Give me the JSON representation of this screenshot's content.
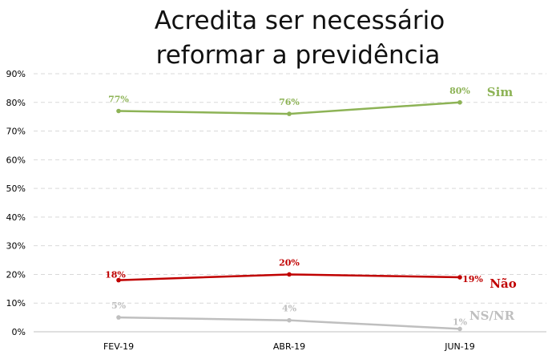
{
  "title_line1": "Acredita ser necessário",
  "title_line2": "reformar a previdência",
  "chart_data": {
    "type": "line",
    "title": "Acredita ser necessário reformar a previdência",
    "categories": [
      "FEV-19",
      "ABR-19",
      "JUN-19"
    ],
    "ylim": [
      0,
      90
    ],
    "y_ticks": [
      "0%",
      "10%",
      "20%",
      "30%",
      "40%",
      "50%",
      "60%",
      "70%",
      "80%",
      "90%"
    ],
    "grid": "horizontal dashed",
    "series": [
      {
        "name": "Sim",
        "values": [
          77,
          76,
          80
        ],
        "labels": [
          "77%",
          "76%",
          "80%"
        ],
        "color": "#8db356"
      },
      {
        "name": "Não",
        "values": [
          18,
          20,
          19
        ],
        "labels": [
          "18%",
          "20%",
          "19%"
        ],
        "color": "#c00000"
      },
      {
        "name": "NS/NR",
        "values": [
          5,
          4,
          1
        ],
        "labels": [
          "5%",
          "4%",
          "1%"
        ],
        "color": "#bfbfbf"
      }
    ]
  }
}
